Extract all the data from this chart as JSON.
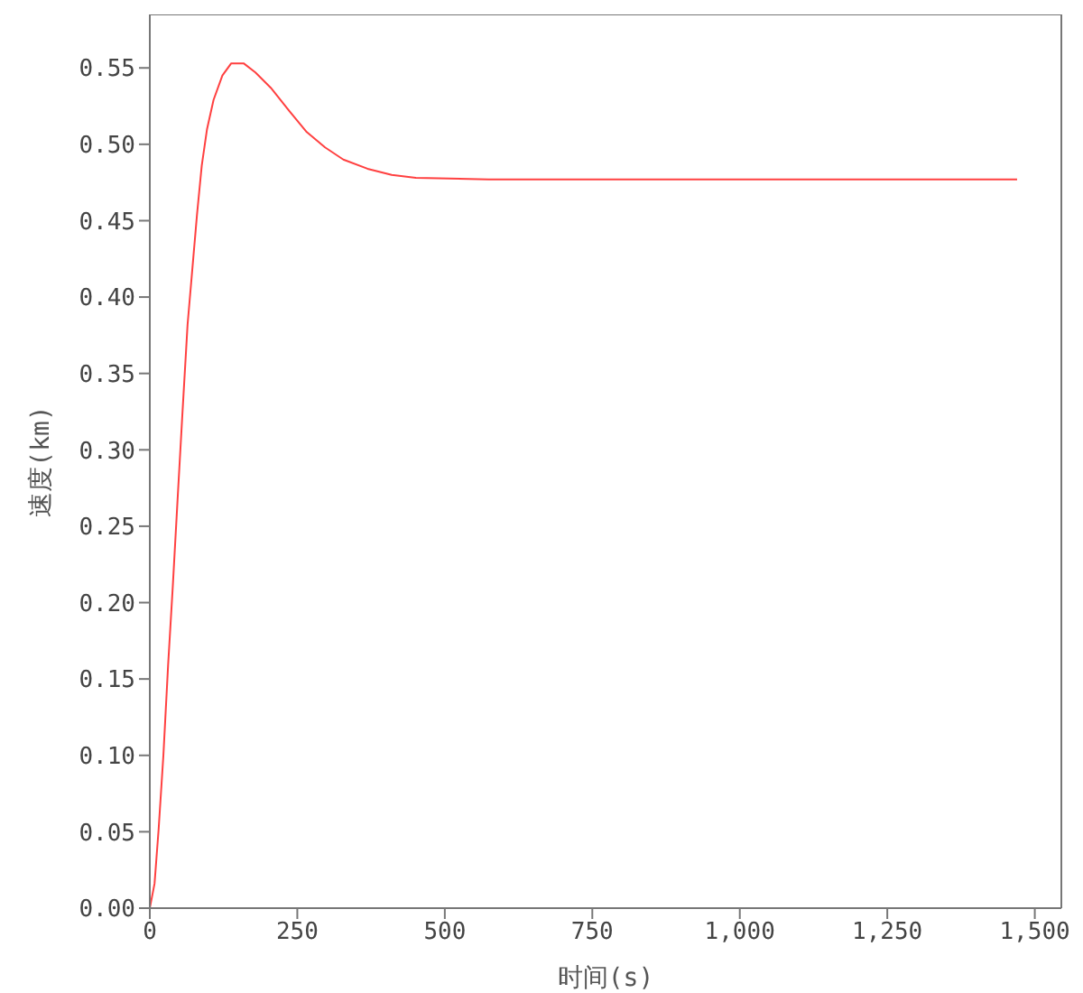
{
  "chart_data": {
    "type": "line",
    "xlabel": "时间(s)",
    "ylabel": "速度(km)",
    "x": [
      0,
      8,
      15,
      23,
      31,
      39,
      47,
      55,
      64,
      72,
      80,
      88,
      97,
      108,
      123,
      138,
      159,
      179,
      205,
      236,
      266,
      297,
      328,
      369,
      410,
      451,
      574,
      800,
      1100,
      1470
    ],
    "series": [
      {
        "color": "#ff4040",
        "values": [
          0,
          0.016,
          0.052,
          0.1,
          0.159,
          0.211,
          0.267,
          0.322,
          0.382,
          0.418,
          0.454,
          0.486,
          0.51,
          0.529,
          0.545,
          0.553,
          0.553,
          0.547,
          0.537,
          0.522,
          0.508,
          0.498,
          0.49,
          0.484,
          0.48,
          0.478,
          0.477,
          0.477,
          0.477,
          0.477
        ]
      }
    ],
    "xlim": [
      0,
      1545
    ],
    "xticks": [
      0,
      {
        "value": 250,
        "label": "250"
      },
      {
        "value": 500,
        "label": "500"
      },
      {
        "value": 750,
        "label": "750"
      },
      {
        "value": 1000,
        "label": "1,000"
      },
      {
        "value": 1250,
        "label": "1,250"
      },
      {
        "value": 1500,
        "label": "1,500"
      }
    ],
    "ylim": [
      0,
      0.585
    ],
    "yticks": [
      {
        "value": 0,
        "label": "0.00"
      },
      {
        "value": 0.05,
        "label": "0.05"
      },
      {
        "value": 0.1,
        "label": "0.10"
      },
      {
        "value": 0.15,
        "label": "0.15"
      },
      {
        "value": 0.2,
        "label": "0.20"
      },
      {
        "value": 0.25,
        "label": "0.25"
      },
      {
        "value": 0.3,
        "label": "0.30"
      },
      {
        "value": 0.35,
        "label": "0.35"
      },
      {
        "value": 0.4,
        "label": "0.40"
      },
      {
        "value": 0.45,
        "label": "0.45"
      },
      {
        "value": 0.5,
        "label": "0.50"
      },
      {
        "value": 0.55,
        "label": "0.55"
      }
    ],
    "grid": false,
    "marker": "none",
    "line_style": "solid"
  }
}
